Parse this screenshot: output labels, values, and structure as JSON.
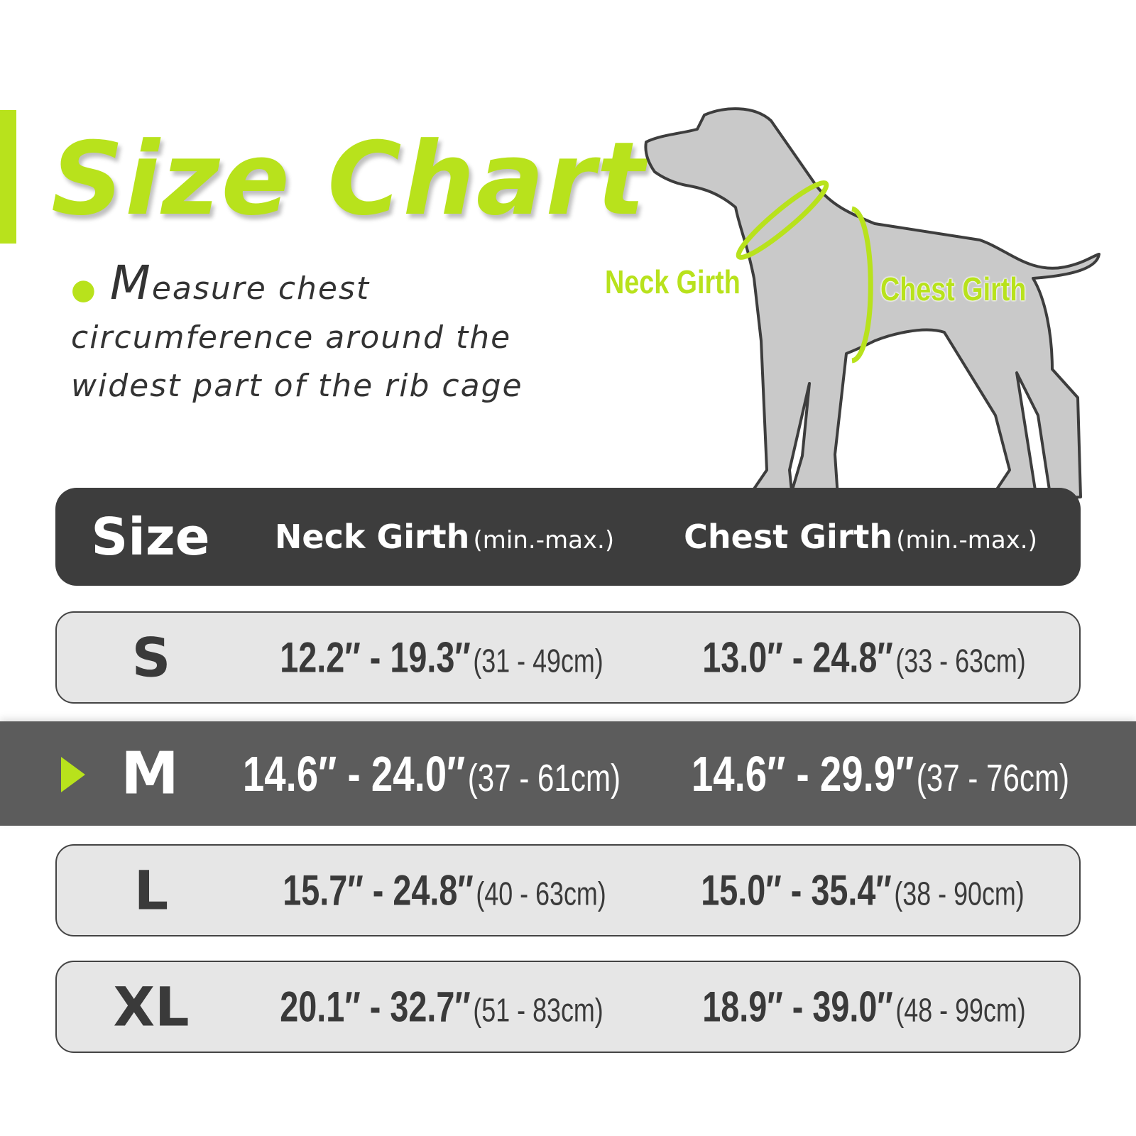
{
  "title": "Size Chart",
  "description": {
    "first_letter": "M",
    "line1_rest": "easure chest",
    "line2": "circumference around the",
    "line3": "widest part of the rib cage"
  },
  "diagram": {
    "neck_label": "Neck Girth",
    "chest_label": "Chest Girth",
    "icon": "dog-silhouette"
  },
  "colors": {
    "accent": "#b8e21c",
    "header_bg": "#3d3d3d",
    "highlight_row_bg": "#5c5c5c",
    "row_bg": "#e6e6e6"
  },
  "table": {
    "headers": {
      "size": "Size",
      "neck": "Neck Girth",
      "neck_sub": "(min.-max.)",
      "chest": "Chest Girth",
      "chest_sub": "(min.-max.)"
    },
    "rows": [
      {
        "size": "S",
        "neck": "12.2″ - 19.3″",
        "neck_cm": "(31 - 49cm)",
        "chest": "13.0″ - 24.8″",
        "chest_cm": "(33 - 63cm)"
      },
      {
        "size": "M",
        "neck": "14.6″ - 24.0″",
        "neck_cm": "(37 - 61cm)",
        "chest": "14.6″ - 29.9″",
        "chest_cm": "(37 - 76cm)",
        "highlighted": true
      },
      {
        "size": "L",
        "neck": "15.7″ - 24.8″",
        "neck_cm": "(40 - 63cm)",
        "chest": "15.0″ - 35.4″",
        "chest_cm": "(38 - 90cm)"
      },
      {
        "size": "XL",
        "neck": "20.1″ - 32.7″",
        "neck_cm": "(51 - 83cm)",
        "chest": "18.9″ - 39.0″",
        "chest_cm": "(48 - 99cm)"
      }
    ]
  }
}
